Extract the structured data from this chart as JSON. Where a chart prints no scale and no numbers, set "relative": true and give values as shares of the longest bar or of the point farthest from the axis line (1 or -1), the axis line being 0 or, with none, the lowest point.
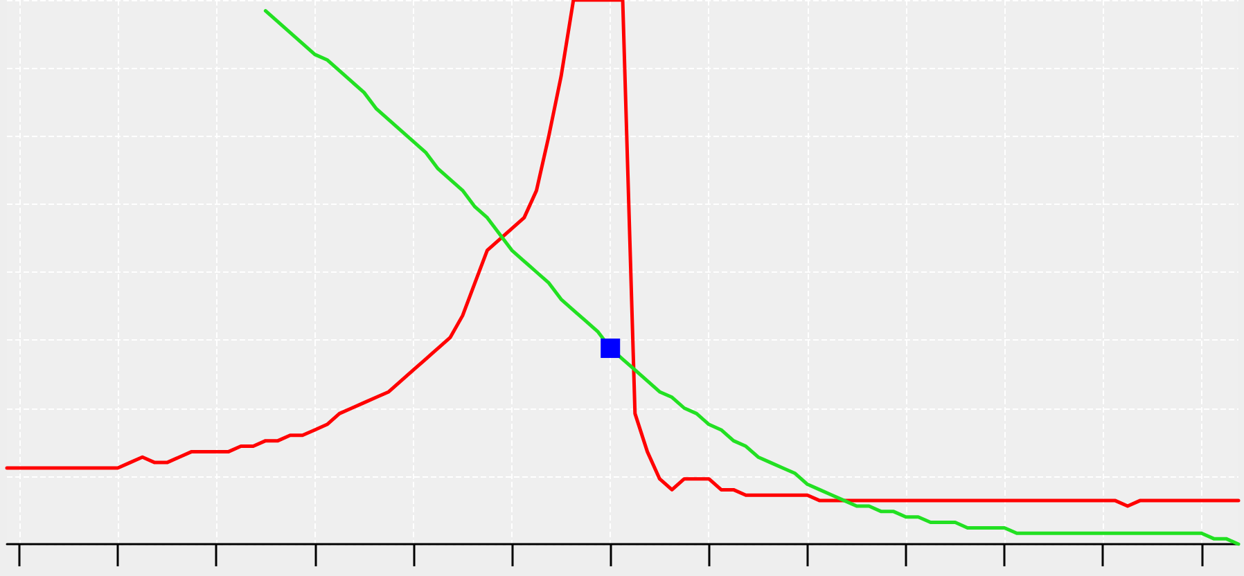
{
  "chart_data": {
    "type": "line",
    "relative": true,
    "grid": true,
    "marker": "none",
    "line_style": "solid",
    "categories": [
      null,
      null,
      null,
      null,
      null,
      null,
      null,
      null,
      null,
      null,
      null,
      null,
      null,
      null,
      null,
      null,
      null,
      null,
      null,
      null,
      null,
      null,
      null,
      null,
      null,
      null,
      null,
      null,
      null,
      null,
      null,
      null,
      null,
      null,
      null,
      null,
      null,
      null,
      null,
      null,
      null,
      null,
      null,
      null,
      null,
      null,
      null,
      null,
      null,
      null,
      null,
      null,
      null,
      null,
      null,
      null,
      null,
      null,
      null,
      null,
      null,
      null,
      null,
      null,
      null,
      null,
      null,
      null,
      null,
      null,
      null,
      null,
      null,
      null,
      null,
      null,
      null,
      null,
      null,
      null,
      null,
      null,
      null,
      null,
      null,
      null,
      null,
      null,
      null,
      null,
      null,
      null,
      null,
      null,
      null,
      null,
      null,
      null,
      null,
      null,
      null
    ],
    "series": [
      {
        "color": "#ff0000",
        "values": [
          0.14,
          0.14,
          0.14,
          0.14,
          0.14,
          0.14,
          0.14,
          0.14,
          0.14,
          0.14,
          0.15,
          0.16,
          0.15,
          0.15,
          0.16,
          0.17,
          0.17,
          0.17,
          0.17,
          0.18,
          0.18,
          0.19,
          0.19,
          0.2,
          0.2,
          0.21,
          0.22,
          0.24,
          0.25,
          0.26,
          0.27,
          0.28,
          0.3,
          0.32,
          0.34,
          0.36,
          0.38,
          0.42,
          0.48,
          0.54,
          0.56,
          0.58,
          0.6,
          0.65,
          0.75,
          0.86,
          1,
          1,
          1,
          1,
          1,
          0.24,
          0.17,
          0.12,
          0.1,
          0.12,
          0.12,
          0.12,
          0.1,
          0.1,
          0.09,
          0.09,
          0.09,
          0.09,
          0.09,
          0.09,
          0.08,
          0.08,
          0.08,
          0.08,
          0.08,
          0.08,
          0.08,
          0.08,
          0.08,
          0.08,
          0.08,
          0.08,
          0.08,
          0.08,
          0.08,
          0.08,
          0.08,
          0.08,
          0.08,
          0.08,
          0.08,
          0.08,
          0.08,
          0.08,
          0.08,
          0.07,
          0.08,
          0.08,
          0.08,
          0.08,
          0.08,
          0.08,
          0.08,
          0.08,
          0.08
        ]
      },
      {
        "color": "#22e022",
        "values": [
          null,
          null,
          null,
          null,
          null,
          null,
          null,
          null,
          null,
          null,
          null,
          null,
          null,
          null,
          null,
          null,
          null,
          null,
          null,
          null,
          null,
          0.98,
          0.96,
          0.94,
          0.92,
          0.9,
          0.89,
          0.87,
          0.85,
          0.83,
          0.8,
          0.78,
          0.76,
          0.74,
          0.72,
          0.69,
          0.67,
          0.65,
          0.62,
          0.6,
          0.57,
          0.54,
          0.52,
          0.5,
          0.48,
          0.45,
          0.43,
          0.41,
          0.39,
          0.36,
          0.34,
          0.32,
          0.3,
          0.28,
          0.27,
          0.25,
          0.24,
          0.22,
          0.21,
          0.19,
          0.18,
          0.16,
          0.15,
          0.14,
          0.13,
          0.11,
          0.1,
          0.09,
          0.08,
          0.07,
          0.07,
          0.06,
          0.06,
          0.05,
          0.05,
          0.04,
          0.04,
          0.04,
          0.03,
          0.03,
          0.03,
          0.03,
          0.02,
          0.02,
          0.02,
          0.02,
          0.02,
          0.02,
          0.02,
          0.02,
          0.02,
          0.02,
          0.02,
          0.02,
          0.02,
          0.02,
          0.02,
          0.02,
          0.01,
          0.01,
          0
        ]
      },
      {
        "marker": "square",
        "color": "#0000ff",
        "values": [
          null,
          null,
          null,
          null,
          null,
          null,
          null,
          null,
          null,
          null,
          null,
          null,
          null,
          null,
          null,
          null,
          null,
          null,
          null,
          null,
          null,
          null,
          null,
          null,
          null,
          null,
          null,
          null,
          null,
          null,
          null,
          null,
          null,
          null,
          null,
          null,
          null,
          null,
          null,
          null,
          null,
          null,
          null,
          null,
          null,
          null,
          null,
          null,
          null,
          0.36,
          null,
          null,
          null,
          null,
          null,
          null,
          null,
          null,
          null,
          null,
          null,
          null,
          null,
          null,
          null,
          null,
          null,
          null,
          null,
          null,
          null,
          null,
          null,
          null,
          null,
          null,
          null,
          null,
          null,
          null,
          null,
          null,
          null,
          null,
          null,
          null,
          null,
          null,
          null,
          null,
          null,
          null,
          null,
          null,
          null,
          null,
          null,
          null,
          null,
          null,
          null
        ]
      }
    ]
  }
}
